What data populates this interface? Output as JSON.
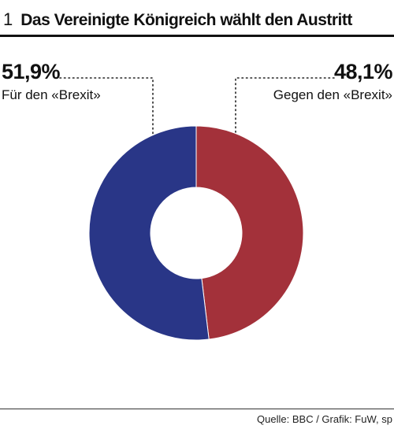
{
  "header": {
    "figure_number": "1",
    "title": "Das Vereinigte Königreich wählt den Austritt"
  },
  "chart_data": {
    "type": "pie",
    "title": "Das Vereinigte Königreich wählt den Austritt",
    "donut": true,
    "slices": [
      {
        "label": "Gegen den «Brexit»",
        "value": 48.1,
        "value_label": "48,1%",
        "color": "#a3313a"
      },
      {
        "label": "Für den «Brexit»",
        "value": 51.9,
        "value_label": "51,9%",
        "color": "#293687"
      }
    ]
  },
  "footer": {
    "source": "Quelle: BBC / Grafik: FuW, sp"
  }
}
